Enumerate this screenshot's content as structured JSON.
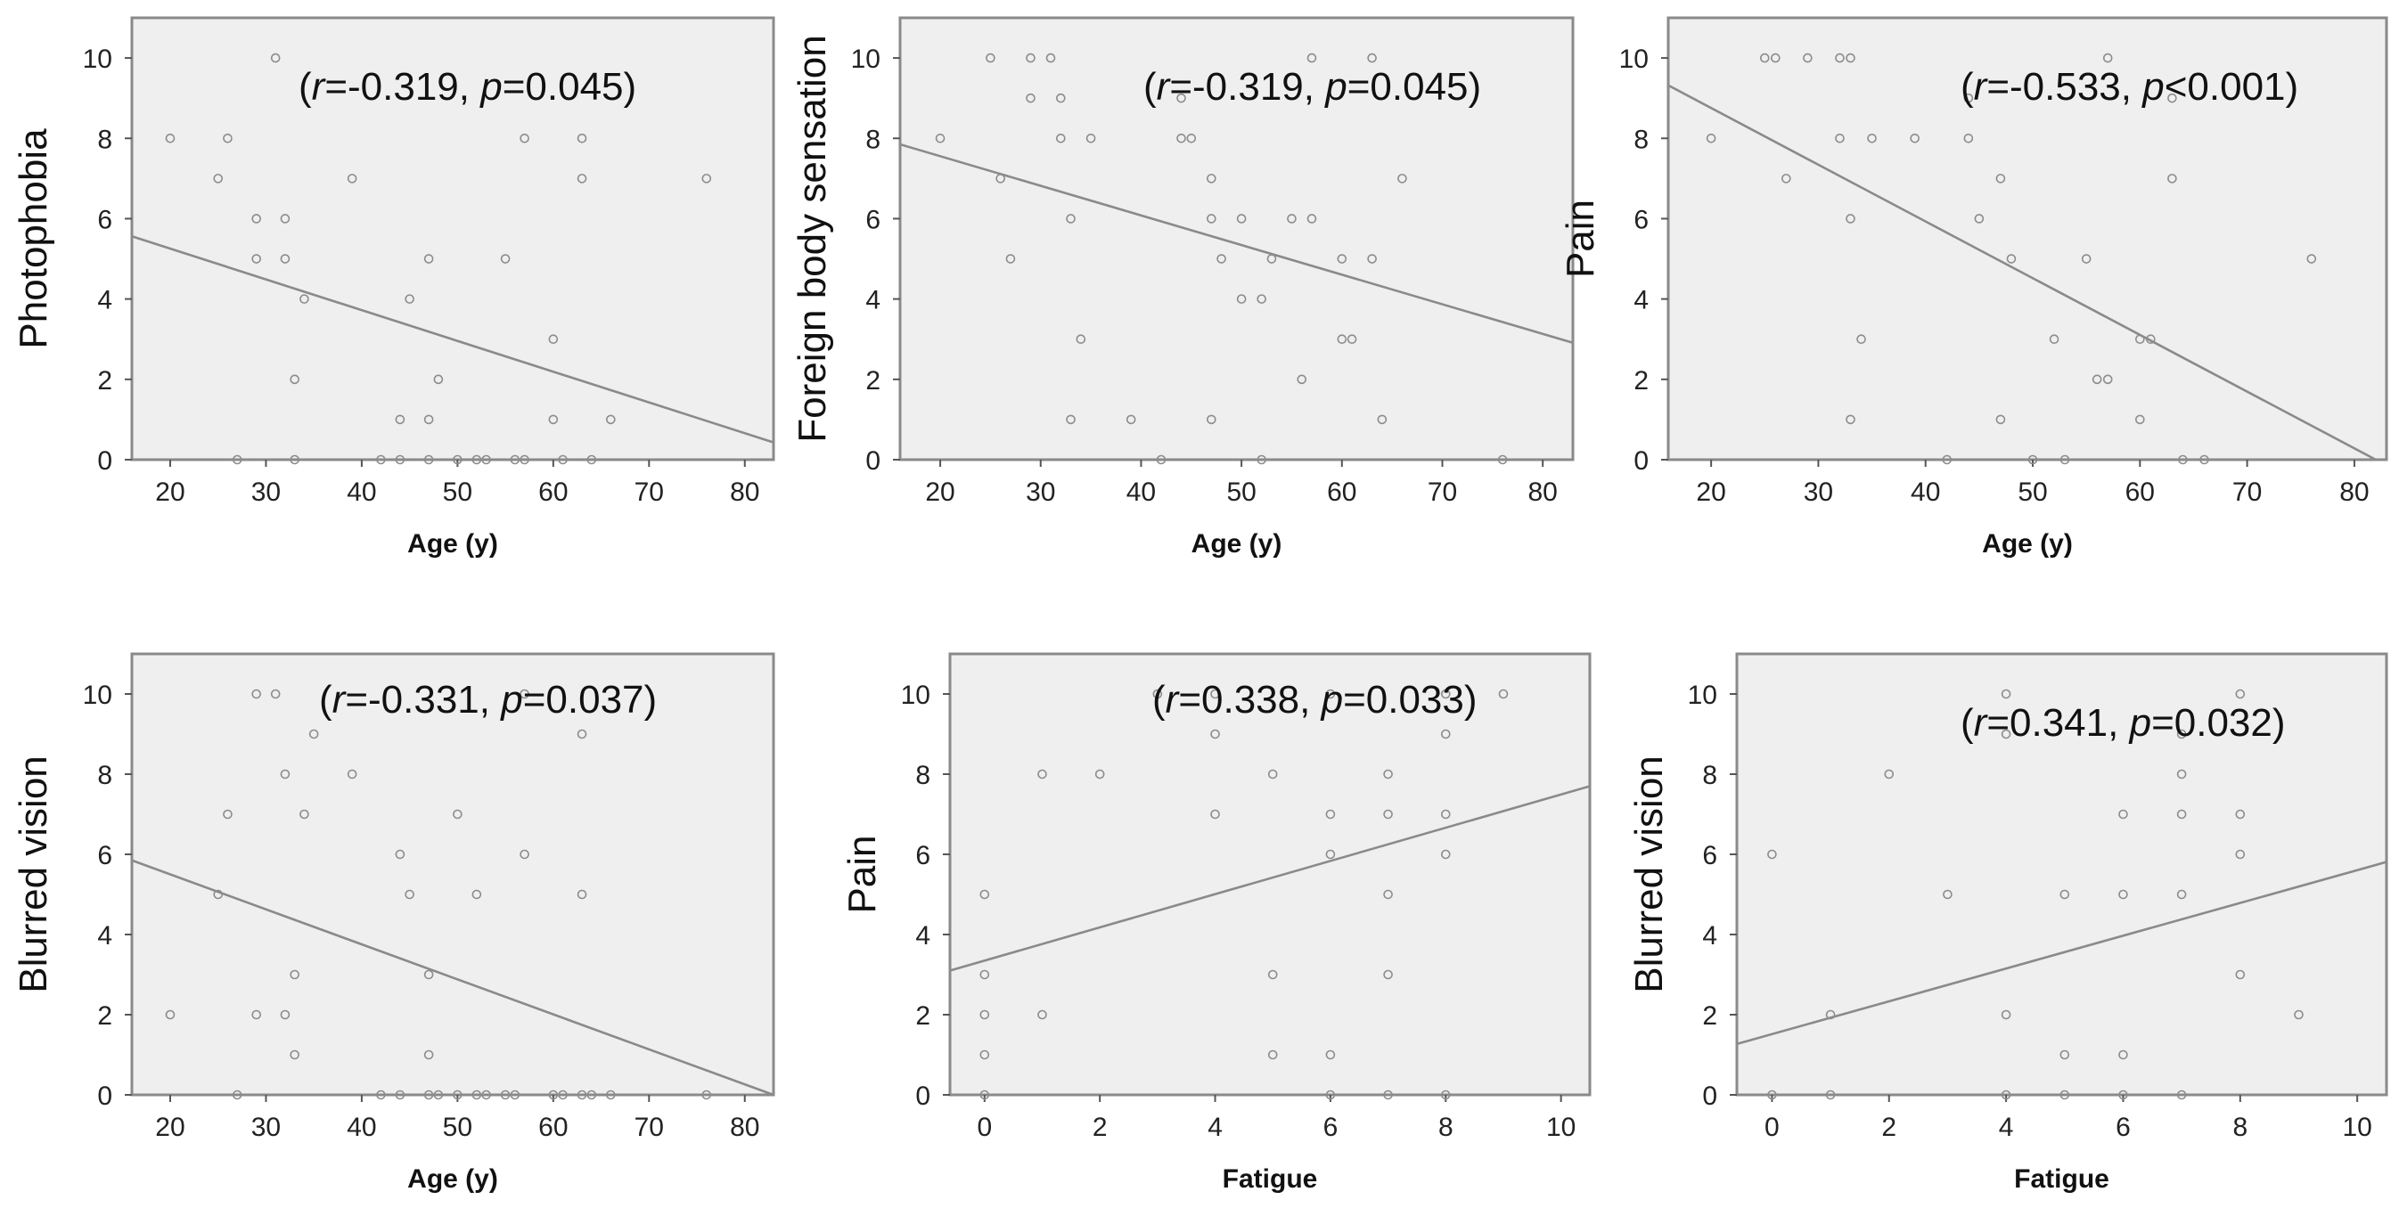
{
  "chart_data": [
    {
      "type": "scatter",
      "xlabel": "Age (y)",
      "ylabel": "Photophobia",
      "xlim": [
        16,
        83
      ],
      "ylim": [
        0,
        11
      ],
      "xticks": [
        20,
        30,
        40,
        50,
        60,
        70,
        80
      ],
      "yticks": [
        0,
        2,
        4,
        6,
        8,
        10
      ],
      "annotation": {
        "r_label": "r",
        "r_value": "=-0.319, ",
        "p_label": "p",
        "p_value": "=0.045)",
        "open": "("
      },
      "points": [
        [
          20,
          8
        ],
        [
          25,
          7
        ],
        [
          26,
          8
        ],
        [
          27,
          0
        ],
        [
          29,
          6
        ],
        [
          29,
          5
        ],
        [
          31,
          10
        ],
        [
          32,
          6
        ],
        [
          32,
          5
        ],
        [
          33,
          2
        ],
        [
          33,
          0
        ],
        [
          34,
          4
        ],
        [
          39,
          7
        ],
        [
          42,
          0
        ],
        [
          44,
          1
        ],
        [
          44,
          0
        ],
        [
          45,
          4
        ],
        [
          47,
          5
        ],
        [
          47,
          1
        ],
        [
          47,
          0
        ],
        [
          48,
          2
        ],
        [
          50,
          0
        ],
        [
          52,
          0
        ],
        [
          53,
          0
        ],
        [
          55,
          5
        ],
        [
          56,
          0
        ],
        [
          57,
          8
        ],
        [
          57,
          0
        ],
        [
          60,
          3
        ],
        [
          60,
          1
        ],
        [
          61,
          0
        ],
        [
          63,
          8
        ],
        [
          63,
          7
        ],
        [
          64,
          0
        ],
        [
          66,
          1
        ],
        [
          76,
          7
        ]
      ],
      "fit": {
        "x": [
          16,
          83
        ],
        "y": [
          5.56,
          0.43
        ]
      }
    },
    {
      "type": "scatter",
      "xlabel": "Age (y)",
      "ylabel": "Foreign body sensation",
      "xlim": [
        16,
        83
      ],
      "ylim": [
        0,
        11
      ],
      "xticks": [
        20,
        30,
        40,
        50,
        60,
        70,
        80
      ],
      "yticks": [
        0,
        2,
        4,
        6,
        8,
        10
      ],
      "annotation": {
        "r_label": "r",
        "r_value": "=-0.319, ",
        "p_label": "p",
        "p_value": "=0.045)",
        "open": "("
      },
      "points": [
        [
          20,
          8
        ],
        [
          25,
          10
        ],
        [
          26,
          7
        ],
        [
          27,
          5
        ],
        [
          29,
          10
        ],
        [
          29,
          9
        ],
        [
          31,
          10
        ],
        [
          32,
          9
        ],
        [
          32,
          8
        ],
        [
          33,
          6
        ],
        [
          33,
          1
        ],
        [
          34,
          3
        ],
        [
          35,
          8
        ],
        [
          39,
          1
        ],
        [
          42,
          0
        ],
        [
          44,
          9
        ],
        [
          44,
          8
        ],
        [
          45,
          8
        ],
        [
          47,
          7
        ],
        [
          47,
          6
        ],
        [
          47,
          1
        ],
        [
          48,
          5
        ],
        [
          50,
          6
        ],
        [
          50,
          4
        ],
        [
          52,
          4
        ],
        [
          52,
          0
        ],
        [
          53,
          5
        ],
        [
          55,
          6
        ],
        [
          56,
          2
        ],
        [
          57,
          10
        ],
        [
          57,
          6
        ],
        [
          60,
          5
        ],
        [
          60,
          3
        ],
        [
          61,
          3
        ],
        [
          63,
          10
        ],
        [
          63,
          5
        ],
        [
          64,
          1
        ],
        [
          66,
          7
        ],
        [
          76,
          0
        ]
      ],
      "fit": {
        "x": [
          16,
          83
        ],
        "y": [
          7.85,
          2.91
        ]
      }
    },
    {
      "type": "scatter",
      "xlabel": "Age (y)",
      "ylabel": "Pain",
      "xlim": [
        16,
        83
      ],
      "ylim": [
        0,
        11
      ],
      "xticks": [
        20,
        30,
        40,
        50,
        60,
        70,
        80
      ],
      "yticks": [
        0,
        2,
        4,
        6,
        8,
        10
      ],
      "annotation": {
        "r_label": "r",
        "r_value": "=-0.533, ",
        "p_label": "p",
        "p_value": "<0.001)",
        "open": "("
      },
      "points": [
        [
          20,
          8
        ],
        [
          25,
          10
        ],
        [
          26,
          10
        ],
        [
          27,
          7
        ],
        [
          29,
          10
        ],
        [
          32,
          10
        ],
        [
          32,
          8
        ],
        [
          33,
          10
        ],
        [
          33,
          6
        ],
        [
          33,
          1
        ],
        [
          34,
          3
        ],
        [
          35,
          8
        ],
        [
          39,
          8
        ],
        [
          42,
          0
        ],
        [
          44,
          9
        ],
        [
          44,
          8
        ],
        [
          45,
          6
        ],
        [
          47,
          7
        ],
        [
          47,
          1
        ],
        [
          48,
          5
        ],
        [
          50,
          0
        ],
        [
          52,
          3
        ],
        [
          53,
          0
        ],
        [
          55,
          5
        ],
        [
          56,
          2
        ],
        [
          57,
          10
        ],
        [
          57,
          2
        ],
        [
          60,
          3
        ],
        [
          60,
          1
        ],
        [
          61,
          3
        ],
        [
          63,
          9
        ],
        [
          63,
          7
        ],
        [
          64,
          0
        ],
        [
          66,
          0
        ],
        [
          76,
          5
        ]
      ],
      "fit": {
        "x": [
          16,
          82
        ],
        "y": [
          9.32,
          0
        ]
      }
    },
    {
      "type": "scatter",
      "xlabel": "Age (y)",
      "ylabel": "Blurred vision",
      "xlim": [
        16,
        83
      ],
      "ylim": [
        0,
        11
      ],
      "xticks": [
        20,
        30,
        40,
        50,
        60,
        70,
        80
      ],
      "yticks": [
        0,
        2,
        4,
        6,
        8,
        10
      ],
      "annotation": {
        "r_label": "r",
        "r_value": "=-0.331, ",
        "p_label": "p",
        "p_value": "=0.037)",
        "open": "("
      },
      "points": [
        [
          20,
          2
        ],
        [
          25,
          5
        ],
        [
          26,
          7
        ],
        [
          27,
          0
        ],
        [
          29,
          10
        ],
        [
          29,
          2
        ],
        [
          31,
          10
        ],
        [
          32,
          8
        ],
        [
          32,
          2
        ],
        [
          33,
          3
        ],
        [
          33,
          1
        ],
        [
          34,
          7
        ],
        [
          35,
          9
        ],
        [
          39,
          8
        ],
        [
          42,
          0
        ],
        [
          44,
          6
        ],
        [
          44,
          0
        ],
        [
          45,
          5
        ],
        [
          47,
          3
        ],
        [
          47,
          1
        ],
        [
          47,
          0
        ],
        [
          48,
          0
        ],
        [
          50,
          7
        ],
        [
          50,
          0
        ],
        [
          52,
          5
        ],
        [
          52,
          0
        ],
        [
          53,
          0
        ],
        [
          55,
          0
        ],
        [
          56,
          0
        ],
        [
          57,
          10
        ],
        [
          57,
          6
        ],
        [
          60,
          0
        ],
        [
          61,
          0
        ],
        [
          63,
          9
        ],
        [
          63,
          5
        ],
        [
          63,
          0
        ],
        [
          64,
          0
        ],
        [
          66,
          0
        ],
        [
          76,
          0
        ]
      ],
      "fit": {
        "x": [
          16,
          83
        ],
        "y": [
          5.85,
          0
        ]
      }
    },
    {
      "type": "scatter",
      "xlabel": "Fatigue",
      "ylabel": "Pain",
      "xlim": [
        -0.6,
        10.5
      ],
      "ylim": [
        0,
        11
      ],
      "xticks": [
        0,
        2,
        4,
        6,
        8,
        10
      ],
      "yticks": [
        0,
        2,
        4,
        6,
        8,
        10
      ],
      "annotation": {
        "r_label": "r",
        "r_value": "=0.338, ",
        "p_label": "p",
        "p_value": "=0.033)",
        "open": "("
      },
      "points": [
        [
          0,
          5
        ],
        [
          0,
          3
        ],
        [
          0,
          2
        ],
        [
          0,
          1
        ],
        [
          0,
          0
        ],
        [
          1,
          8
        ],
        [
          1,
          2
        ],
        [
          2,
          8
        ],
        [
          3,
          10
        ],
        [
          4,
          10
        ],
        [
          4,
          9
        ],
        [
          4,
          7
        ],
        [
          5,
          8
        ],
        [
          5,
          3
        ],
        [
          5,
          1
        ],
        [
          6,
          10
        ],
        [
          6,
          7
        ],
        [
          6,
          6
        ],
        [
          6,
          1
        ],
        [
          6,
          0
        ],
        [
          7,
          8
        ],
        [
          7,
          7
        ],
        [
          7,
          5
        ],
        [
          7,
          3
        ],
        [
          7,
          0
        ],
        [
          8,
          10
        ],
        [
          8,
          9
        ],
        [
          8,
          7
        ],
        [
          8,
          6
        ],
        [
          8,
          0
        ],
        [
          9,
          10
        ]
      ],
      "fit": {
        "x": [
          -0.6,
          10.5
        ],
        "y": [
          3.1,
          7.7
        ]
      }
    },
    {
      "type": "scatter",
      "xlabel": "Fatigue",
      "ylabel": "Blurred vision",
      "xlim": [
        -0.6,
        10.5
      ],
      "ylim": [
        0,
        11
      ],
      "xticks": [
        0,
        2,
        4,
        6,
        8,
        10
      ],
      "yticks": [
        0,
        2,
        4,
        6,
        8,
        10
      ],
      "annotation": {
        "r_label": "r",
        "r_value": "=0.341, ",
        "p_label": "p",
        "p_value": "=0.032)",
        "open": "("
      },
      "points": [
        [
          0,
          6
        ],
        [
          0,
          0
        ],
        [
          1,
          2
        ],
        [
          1,
          0
        ],
        [
          2,
          8
        ],
        [
          3,
          5
        ],
        [
          4,
          10
        ],
        [
          4,
          9
        ],
        [
          4,
          2
        ],
        [
          4,
          0
        ],
        [
          5,
          5
        ],
        [
          5,
          1
        ],
        [
          5,
          0
        ],
        [
          6,
          7
        ],
        [
          6,
          5
        ],
        [
          6,
          1
        ],
        [
          6,
          0
        ],
        [
          7,
          9
        ],
        [
          7,
          8
        ],
        [
          7,
          7
        ],
        [
          7,
          5
        ],
        [
          7,
          0
        ],
        [
          8,
          10
        ],
        [
          8,
          7
        ],
        [
          8,
          6
        ],
        [
          8,
          3
        ],
        [
          9,
          2
        ]
      ],
      "fit": {
        "x": [
          -0.6,
          10.5
        ],
        "y": [
          1.27,
          5.81
        ]
      }
    }
  ]
}
